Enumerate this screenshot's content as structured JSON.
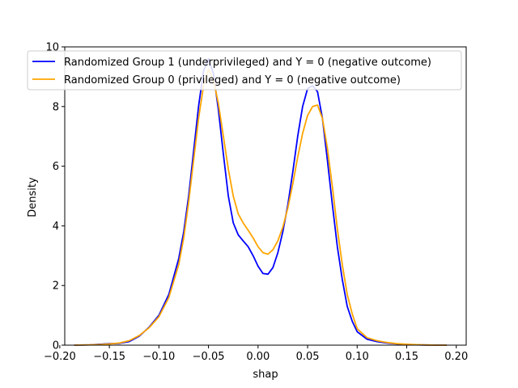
{
  "chart_data": {
    "type": "line",
    "xlabel": "shap",
    "ylabel": "Density",
    "xlim": [
      -0.195,
      0.21
    ],
    "ylim": [
      0,
      10
    ],
    "x_ticks": [
      -0.2,
      -0.15,
      -0.1,
      -0.05,
      0.0,
      0.05,
      0.1,
      0.15,
      0.2
    ],
    "x_tick_labels": [
      "−0.20",
      "−0.15",
      "−0.10",
      "−0.05",
      "0.00",
      "0.05",
      "0.10",
      "0.15",
      "0.20"
    ],
    "y_ticks": [
      0,
      2,
      4,
      6,
      8,
      10
    ],
    "y_tick_labels": [
      "0",
      "2",
      "4",
      "6",
      "8",
      "10"
    ],
    "grid": false,
    "legend_position": "top",
    "series": [
      {
        "name": "Randomized Group 1 (underprivileged) and Y = 0 (negative outcome)",
        "color": "#0000ff",
        "x": [
          -0.185,
          -0.17,
          -0.16,
          -0.15,
          -0.14,
          -0.13,
          -0.12,
          -0.11,
          -0.1,
          -0.09,
          -0.08,
          -0.075,
          -0.07,
          -0.065,
          -0.06,
          -0.055,
          -0.05,
          -0.045,
          -0.04,
          -0.035,
          -0.03,
          -0.025,
          -0.02,
          -0.015,
          -0.01,
          -0.005,
          0.0,
          0.005,
          0.01,
          0.015,
          0.02,
          0.025,
          0.03,
          0.035,
          0.04,
          0.045,
          0.05,
          0.055,
          0.06,
          0.065,
          0.07,
          0.075,
          0.08,
          0.085,
          0.09,
          0.095,
          0.1,
          0.11,
          0.12,
          0.13,
          0.14,
          0.15,
          0.16,
          0.17,
          0.18,
          0.19
        ],
        "y": [
          0.0,
          0.01,
          0.03,
          0.05,
          0.06,
          0.12,
          0.3,
          0.6,
          1.0,
          1.7,
          2.9,
          3.8,
          5.0,
          6.5,
          8.0,
          9.2,
          9.6,
          9.1,
          7.9,
          6.4,
          5.0,
          4.1,
          3.7,
          3.5,
          3.3,
          3.0,
          2.65,
          2.4,
          2.38,
          2.6,
          3.1,
          3.8,
          4.7,
          5.8,
          7.0,
          8.0,
          8.6,
          8.7,
          8.5,
          7.6,
          6.2,
          4.7,
          3.3,
          2.2,
          1.3,
          0.8,
          0.45,
          0.2,
          0.12,
          0.07,
          0.04,
          0.02,
          0.01,
          0.005,
          0.0,
          0.0
        ]
      },
      {
        "name": "Randomized Group 0 (privileged) and Y = 0 (negative outcome)",
        "color": "#ffa500",
        "x": [
          -0.185,
          -0.17,
          -0.16,
          -0.15,
          -0.14,
          -0.13,
          -0.12,
          -0.11,
          -0.1,
          -0.09,
          -0.08,
          -0.075,
          -0.07,
          -0.065,
          -0.06,
          -0.055,
          -0.05,
          -0.045,
          -0.04,
          -0.035,
          -0.03,
          -0.025,
          -0.02,
          -0.015,
          -0.01,
          -0.005,
          0.0,
          0.005,
          0.01,
          0.015,
          0.02,
          0.025,
          0.03,
          0.035,
          0.04,
          0.045,
          0.05,
          0.055,
          0.06,
          0.065,
          0.07,
          0.075,
          0.08,
          0.085,
          0.09,
          0.095,
          0.1,
          0.11,
          0.12,
          0.13,
          0.14,
          0.15,
          0.16,
          0.17,
          0.18,
          0.19
        ],
        "y": [
          0.0,
          0.01,
          0.02,
          0.04,
          0.07,
          0.15,
          0.32,
          0.58,
          0.95,
          1.6,
          2.7,
          3.6,
          4.8,
          6.2,
          7.6,
          8.7,
          9.25,
          8.9,
          8.1,
          7.0,
          5.9,
          5.0,
          4.4,
          4.1,
          3.85,
          3.6,
          3.3,
          3.1,
          3.05,
          3.2,
          3.5,
          3.95,
          4.6,
          5.4,
          6.3,
          7.1,
          7.7,
          8.0,
          8.05,
          7.6,
          6.6,
          5.3,
          3.9,
          2.7,
          1.7,
          1.05,
          0.55,
          0.25,
          0.15,
          0.09,
          0.05,
          0.03,
          0.015,
          0.006,
          0.0,
          0.0
        ]
      }
    ]
  }
}
